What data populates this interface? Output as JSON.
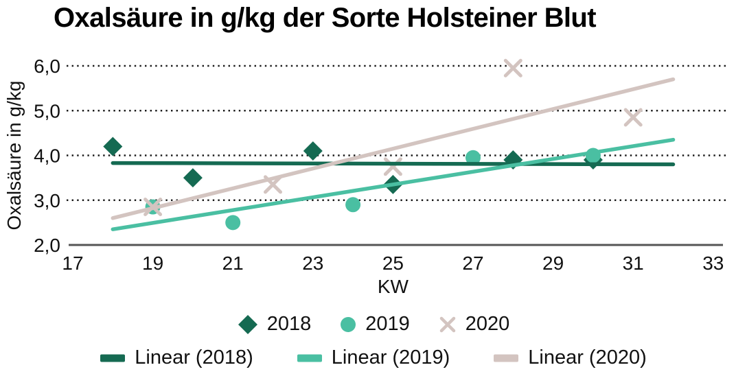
{
  "chart_data": {
    "type": "scatter",
    "title": "Oxalsäure in g/kg der Sorte Holsteiner Blut",
    "xlabel": "KW",
    "ylabel": "Oxalsäure in g/kg",
    "xlim": [
      17,
      33
    ],
    "ylim": [
      2,
      6
    ],
    "x_ticks": [
      17,
      19,
      21,
      23,
      25,
      27,
      29,
      31,
      33
    ],
    "y_ticks": [
      2,
      3,
      4,
      5,
      6
    ],
    "y_tick_labels": [
      "2,0",
      "3,0",
      "4,0",
      "5,0",
      "6,0"
    ],
    "grid": "horizontal dotted",
    "legend_position": "bottom",
    "colors": {
      "green_2018": "#156a52",
      "teal_2019": "#4abfa2",
      "tan_2020": "#d3c4c0",
      "axis_line": "#555555",
      "grid_dots": "#1a1a1a",
      "text": "#111111"
    },
    "series": [
      {
        "name": "2018",
        "marker": "diamond",
        "color": "#156a52",
        "points": [
          [
            18,
            4.2
          ],
          [
            20,
            3.5
          ],
          [
            23,
            4.1
          ],
          [
            25,
            3.35
          ],
          [
            28,
            3.9
          ],
          [
            30,
            3.9
          ]
        ]
      },
      {
        "name": "2019",
        "marker": "circle",
        "color": "#4abfa2",
        "points": [
          [
            19,
            2.85
          ],
          [
            21,
            2.5
          ],
          [
            24,
            2.9
          ],
          [
            27,
            3.95
          ],
          [
            30,
            4.0
          ]
        ]
      },
      {
        "name": "2020",
        "marker": "x",
        "color": "#d3c4c0",
        "points": [
          [
            19,
            2.85
          ],
          [
            22,
            3.35
          ],
          [
            25,
            3.75
          ],
          [
            28,
            5.95
          ],
          [
            31,
            4.85
          ]
        ]
      }
    ],
    "trendlines": [
      {
        "name": "Linear (2018)",
        "color": "#156a52",
        "start": [
          18,
          3.83
        ],
        "end": [
          32,
          3.8
        ]
      },
      {
        "name": "Linear (2019)",
        "color": "#4abfa2",
        "start": [
          18,
          2.35
        ],
        "end": [
          32,
          4.35
        ]
      },
      {
        "name": "Linear (2020)",
        "color": "#d3c4c0",
        "start": [
          18,
          2.6
        ],
        "end": [
          32,
          5.7
        ]
      }
    ]
  }
}
